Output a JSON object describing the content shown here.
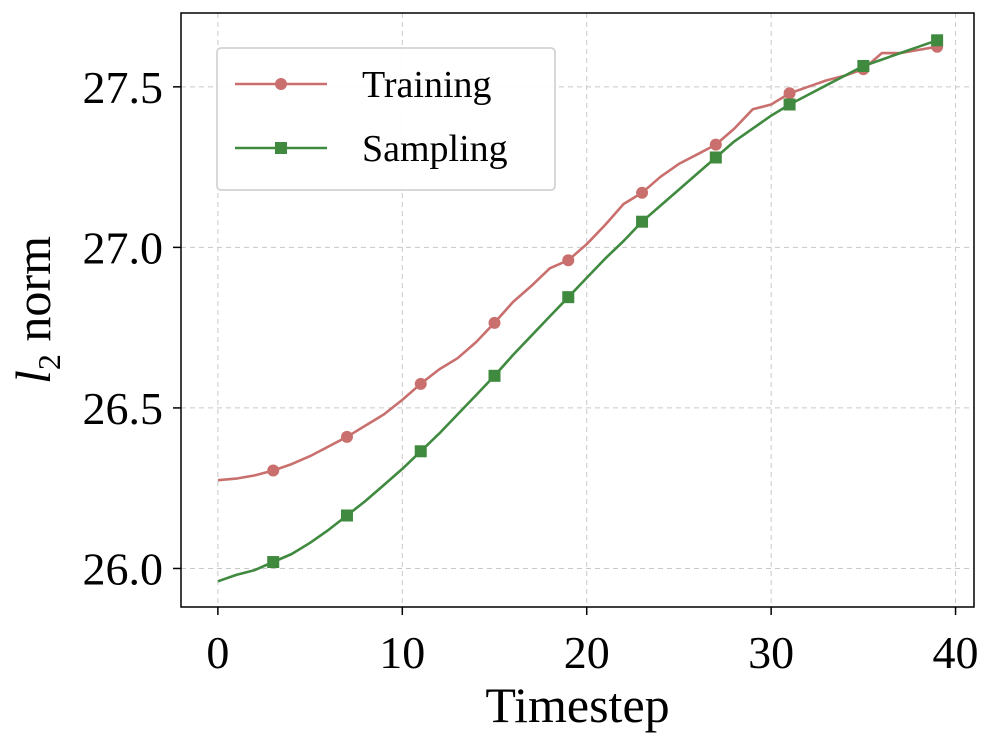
{
  "chart_data": {
    "type": "line",
    "title": "",
    "xlabel": "Timestep",
    "ylabel_main": "l",
    "ylabel_sub": "2",
    "ylabel_rest": " norm",
    "xlim": [
      -2,
      41
    ],
    "ylim": [
      25.88,
      27.73
    ],
    "xticks": [
      0,
      10,
      20,
      30,
      40
    ],
    "xtick_labels": [
      "0",
      "10",
      "20",
      "30",
      "40"
    ],
    "yticks": [
      26.0,
      26.5,
      27.0,
      27.5
    ],
    "ytick_labels": [
      "26.0",
      "26.5",
      "27.0",
      "27.5"
    ],
    "grid": true,
    "legend_position": "upper-left",
    "series": [
      {
        "name": "Training",
        "color": "#c9706f",
        "marker": "circle",
        "x": [
          0,
          1,
          2,
          3,
          4,
          5,
          6,
          7,
          8,
          9,
          10,
          11,
          12,
          13,
          14,
          15,
          16,
          17,
          18,
          19,
          20,
          21,
          22,
          23,
          24,
          25,
          26,
          27,
          28,
          29,
          30,
          31,
          32,
          33,
          34,
          35,
          36,
          37,
          38,
          39
        ],
        "values": [
          26.275,
          26.28,
          26.29,
          26.305,
          26.325,
          26.35,
          26.38,
          26.41,
          26.445,
          26.48,
          26.525,
          26.575,
          26.62,
          26.655,
          26.705,
          26.765,
          26.83,
          26.88,
          26.935,
          26.96,
          27.01,
          27.07,
          27.135,
          27.17,
          27.22,
          27.26,
          27.29,
          27.32,
          27.37,
          27.43,
          27.445,
          27.48,
          27.5,
          27.52,
          27.535,
          27.555,
          27.605,
          27.605,
          27.615,
          27.625
        ],
        "marker_indices": [
          3,
          7,
          11,
          15,
          19,
          23,
          27,
          31,
          35,
          39
        ]
      },
      {
        "name": "Sampling",
        "color": "#3f8a3f",
        "marker": "square",
        "x": [
          0,
          1,
          2,
          3,
          4,
          5,
          6,
          7,
          8,
          9,
          10,
          11,
          12,
          13,
          14,
          15,
          16,
          17,
          18,
          19,
          20,
          21,
          22,
          23,
          24,
          25,
          26,
          27,
          28,
          29,
          30,
          31,
          32,
          33,
          34,
          35,
          36,
          37,
          38,
          39
        ],
        "values": [
          25.96,
          25.98,
          25.995,
          26.02,
          26.045,
          26.08,
          26.12,
          26.165,
          26.21,
          26.26,
          26.31,
          26.365,
          26.42,
          26.48,
          26.54,
          26.6,
          26.665,
          26.725,
          26.785,
          26.845,
          26.905,
          26.965,
          27.02,
          27.08,
          27.13,
          27.18,
          27.23,
          27.28,
          27.33,
          27.37,
          27.41,
          27.445,
          27.475,
          27.505,
          27.535,
          27.565,
          27.585,
          27.605,
          27.625,
          27.645
        ],
        "marker_indices": [
          3,
          7,
          11,
          15,
          19,
          23,
          27,
          31,
          35,
          39
        ]
      }
    ]
  }
}
